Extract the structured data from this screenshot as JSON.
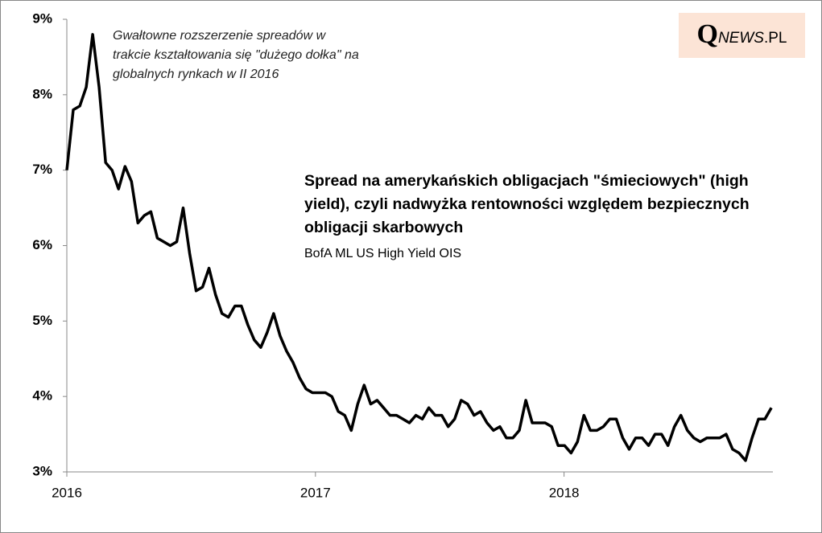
{
  "chart_data": {
    "type": "line",
    "title": "Spread na amerykańskich obligacjach \"śmieciowych\" (high yield), czyli nadwyżka rentowności względem bezpiecznych obligacji skarbowych",
    "subtitle": "BofA ML US High Yield OIS",
    "annotation": "Gwałtowne rozszerzenie spreadów w trakcie kształtowania się \"dużego dołka\" na globalnych rynkach w II 2016",
    "logo": [
      "Q",
      "NEWS",
      ".PL"
    ],
    "x": [
      2016,
      2016.026,
      2016.052,
      2016.078,
      2016.104,
      2016.13,
      2016.156,
      2016.182,
      2016.208,
      2016.234,
      2016.26,
      2016.286,
      2016.312,
      2016.338,
      2016.364,
      2016.39,
      2016.416,
      2016.442,
      2016.468,
      2016.494,
      2016.52,
      2016.546,
      2016.572,
      2016.598,
      2016.624,
      2016.65,
      2016.676,
      2016.702,
      2016.728,
      2016.754,
      2016.78,
      2016.806,
      2016.832,
      2016.858,
      2016.884,
      2016.91,
      2016.936,
      2016.962,
      2016.988,
      2017.014,
      2017.04,
      2017.066,
      2017.092,
      2017.118,
      2017.144,
      2017.17,
      2017.196,
      2017.222,
      2017.248,
      2017.274,
      2017.3,
      2017.326,
      2017.352,
      2017.378,
      2017.404,
      2017.43,
      2017.456,
      2017.482,
      2017.508,
      2017.534,
      2017.56,
      2017.586,
      2017.612,
      2017.638,
      2017.664,
      2017.69,
      2017.716,
      2017.742,
      2017.768,
      2017.794,
      2017.82,
      2017.846,
      2017.872,
      2017.898,
      2017.924,
      2017.95,
      2017.976,
      2018.002,
      2018.028,
      2018.054,
      2018.08,
      2018.106,
      2018.132,
      2018.158,
      2018.184,
      2018.21,
      2018.236,
      2018.262,
      2018.288,
      2018.314,
      2018.34,
      2018.366,
      2018.392,
      2018.418,
      2018.444,
      2018.47,
      2018.496,
      2018.522,
      2018.548,
      2018.574,
      2018.6,
      2018.626,
      2018.652,
      2018.678,
      2018.704,
      2018.73,
      2018.756,
      2018.782,
      2018.808,
      2018.834
    ],
    "series": [
      {
        "color": "#000000",
        "values": [
          7.0,
          7.8,
          7.85,
          8.1,
          8.8,
          8.1,
          7.1,
          7.0,
          6.75,
          7.05,
          6.85,
          6.3,
          6.4,
          6.45,
          6.1,
          6.05,
          6.0,
          6.05,
          6.5,
          5.9,
          5.4,
          5.45,
          5.7,
          5.35,
          5.1,
          5.05,
          5.2,
          5.2,
          4.95,
          4.75,
          4.65,
          4.85,
          5.1,
          4.8,
          4.6,
          4.45,
          4.25,
          4.1,
          4.05,
          4.05,
          4.05,
          4.0,
          3.8,
          3.75,
          3.55,
          3.9,
          4.15,
          3.9,
          3.95,
          3.85,
          3.75,
          3.75,
          3.7,
          3.65,
          3.75,
          3.7,
          3.85,
          3.75,
          3.75,
          3.6,
          3.7,
          3.95,
          3.9,
          3.75,
          3.8,
          3.65,
          3.55,
          3.6,
          3.45,
          3.45,
          3.55,
          3.95,
          3.65,
          3.65,
          3.65,
          3.6,
          3.35,
          3.35,
          3.25,
          3.4,
          3.75,
          3.55,
          3.55,
          3.6,
          3.7,
          3.7,
          3.45,
          3.3,
          3.45,
          3.45,
          3.35,
          3.5,
          3.5,
          3.35,
          3.6,
          3.75,
          3.55,
          3.45,
          3.4,
          3.45,
          3.45,
          3.45,
          3.5,
          3.3,
          3.25,
          3.15,
          3.45,
          3.7,
          3.7,
          3.85
        ]
      }
    ],
    "xlim": [
      2016,
      2018.84
    ],
    "ylim": [
      3,
      9
    ],
    "xticks": [
      2016,
      2017,
      2018
    ],
    "yticks": [
      {
        "value": 3,
        "label": "3%"
      },
      {
        "value": 4,
        "label": "4%"
      },
      {
        "value": 5,
        "label": "5%"
      },
      {
        "value": 6,
        "label": "6%"
      },
      {
        "value": 7,
        "label": "7%"
      },
      {
        "value": 8,
        "label": "8%"
      },
      {
        "value": 9,
        "label": "9%"
      }
    ],
    "grid": false
  }
}
